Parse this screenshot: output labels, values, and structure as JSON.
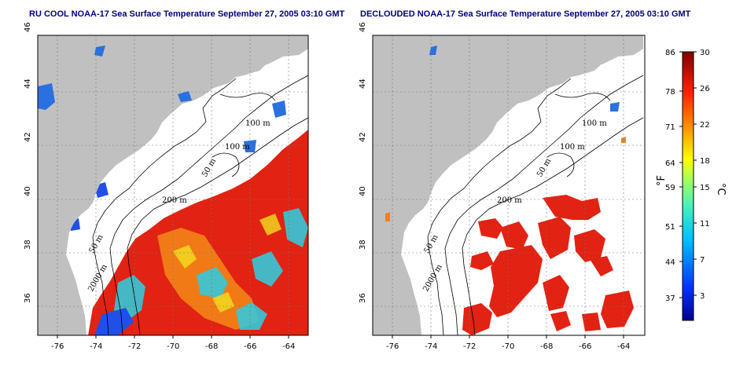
{
  "panels": [
    {
      "title": "RU COOL NOAA-17 Sea Surface Temperature September 27, 2005 03:10 GMT",
      "contour_labels": [
        "100 m",
        "100 m",
        "50 m",
        "200 m",
        "50 m",
        "2000 m"
      ]
    },
    {
      "title": "DECLOUDED NOAA-17 Sea Surface Temperature September 27, 2005 03:10 GMT",
      "contour_labels": [
        "100 m",
        "100 m",
        "50 m",
        "200 m",
        "50 m",
        "2000 m"
      ]
    }
  ],
  "axes": {
    "lon_ticks": [
      "-76",
      "-74",
      "-72",
      "-70",
      "-68",
      "-66",
      "-64"
    ],
    "lat_ticks": [
      "46",
      "44",
      "42",
      "40",
      "38",
      "36"
    ]
  },
  "colorbar": {
    "fahrenheit_label": "°F",
    "celsius_label": "°C",
    "fahrenheit_ticks": [
      "86",
      "78",
      "71",
      "64",
      "59",
      "51",
      "44",
      "37"
    ],
    "celsius_ticks": [
      "30",
      "26",
      "22",
      "18",
      "15",
      "11",
      "7",
      "3"
    ]
  },
  "colors": {
    "land": "#c0c0c0",
    "ocean": "#ffffff",
    "warm": "#e02010",
    "cold": "#1020c0"
  }
}
